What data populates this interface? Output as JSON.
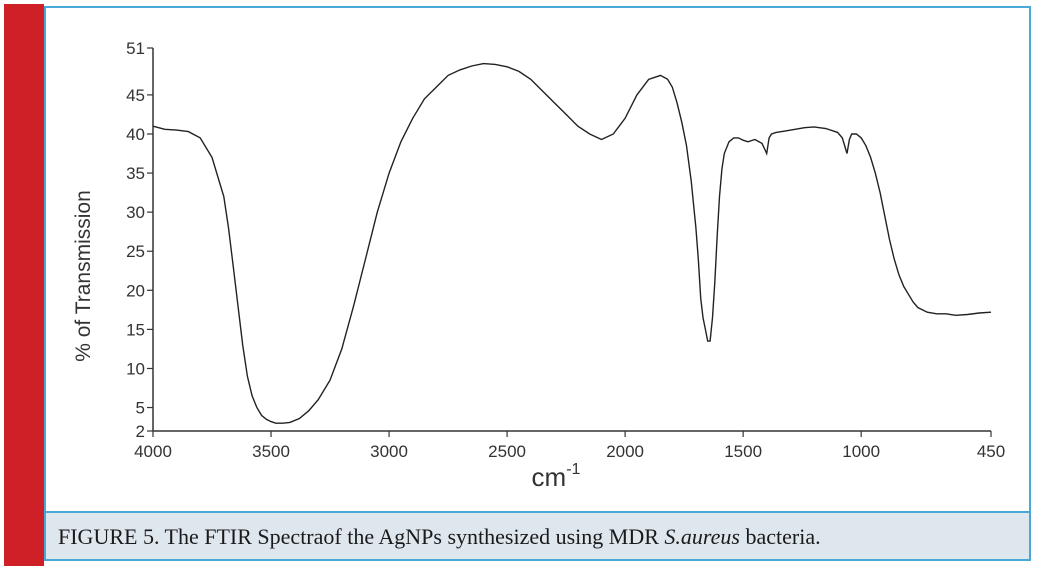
{
  "colors": {
    "side_bar": "#d02027",
    "frame_border": "#4aa8d8",
    "caption_bg": "#dfe7ee",
    "line": "#222222"
  },
  "caption": {
    "text_before": "FIGURE 5. The FTIR Spectraof the AgNPs synthesized using MDR ",
    "italic": "S.aureus",
    "text_after": " bacteria."
  },
  "chart_data": {
    "type": "line",
    "title": "",
    "xlabel": "cm",
    "xlabel_superscript": "-1",
    "ylabel": "% of Transmission",
    "x_reversed": true,
    "xlim": [
      4000,
      450
    ],
    "ylim": [
      2,
      51
    ],
    "x_ticks": [
      4000,
      3500,
      3000,
      2500,
      2000,
      1500,
      1000,
      450
    ],
    "y_ticks": [
      2,
      5,
      10,
      15,
      20,
      25,
      30,
      35,
      40,
      45,
      51
    ],
    "grid": false,
    "series": [
      {
        "name": "",
        "x": [
          4000,
          3950,
          3900,
          3850,
          3800,
          3750,
          3700,
          3680,
          3660,
          3640,
          3620,
          3600,
          3580,
          3560,
          3540,
          3520,
          3500,
          3480,
          3450,
          3420,
          3380,
          3340,
          3300,
          3250,
          3200,
          3150,
          3100,
          3050,
          3000,
          2950,
          2900,
          2850,
          2800,
          2750,
          2700,
          2650,
          2600,
          2550,
          2500,
          2450,
          2400,
          2350,
          2300,
          2250,
          2200,
          2150,
          2100,
          2050,
          2000,
          1950,
          1900,
          1850,
          1820,
          1800,
          1780,
          1760,
          1740,
          1720,
          1700,
          1690,
          1680,
          1670,
          1660,
          1650,
          1640,
          1630,
          1620,
          1610,
          1600,
          1590,
          1580,
          1560,
          1540,
          1520,
          1500,
          1480,
          1450,
          1420,
          1400,
          1390,
          1380,
          1360,
          1320,
          1280,
          1240,
          1200,
          1150,
          1100,
          1080,
          1060,
          1050,
          1040,
          1020,
          1000,
          980,
          960,
          940,
          920,
          900,
          880,
          860,
          840,
          820,
          800,
          780,
          760,
          720,
          680,
          640,
          600,
          550,
          500,
          450
        ],
        "y": [
          41,
          40.6,
          40.5,
          40.3,
          39.5,
          37,
          32,
          28,
          23,
          18,
          13,
          9,
          6.5,
          5,
          4,
          3.5,
          3.2,
          3,
          3,
          3.1,
          3.6,
          4.6,
          6,
          8.5,
          12.5,
          18,
          24,
          30,
          35,
          39,
          42,
          44.5,
          46,
          47.5,
          48.2,
          48.7,
          49,
          48.9,
          48.6,
          48,
          47,
          45.5,
          44,
          42.5,
          41,
          40,
          39.3,
          40,
          42,
          45,
          47,
          47.5,
          47,
          46,
          44,
          41.5,
          38.5,
          34,
          28,
          24,
          19,
          16.5,
          15,
          13.5,
          13.5,
          16.5,
          21,
          27,
          32,
          35.5,
          37.5,
          39,
          39.5,
          39.5,
          39.2,
          39,
          39.3,
          38.8,
          37.5,
          39.5,
          40,
          40.2,
          40.4,
          40.6,
          40.8,
          40.9,
          40.7,
          40.2,
          39.5,
          37.5,
          39.3,
          40,
          40,
          39.5,
          38.5,
          37,
          35,
          32.5,
          29.5,
          26.5,
          24,
          22,
          20.5,
          19.5,
          18.5,
          17.8,
          17.2,
          17,
          17,
          16.8,
          16.9,
          17.1,
          17.2
        ]
      }
    ]
  }
}
